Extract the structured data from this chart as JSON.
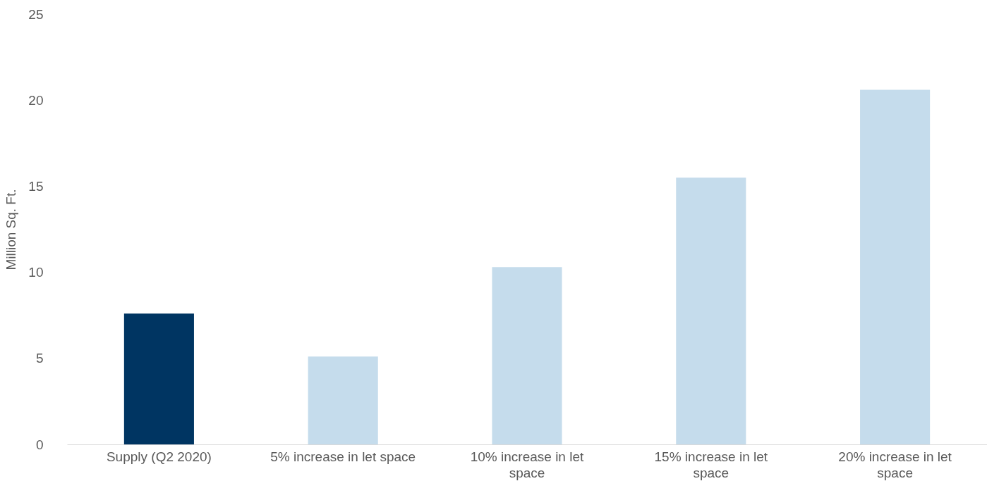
{
  "chart_data": {
    "type": "bar",
    "ylabel": "Million Sq. Ft.",
    "categories": [
      "Supply (Q2 2020)",
      "5% increase in let space",
      "10% increase in let space",
      "15% increase in let space",
      "20% increase in let space"
    ],
    "values": [
      7.6,
      5.1,
      10.3,
      15.5,
      20.6
    ],
    "colors": [
      "#003562",
      "#c5dcec",
      "#c5dcec",
      "#c5dcec",
      "#c5dcec"
    ],
    "ylim": [
      0,
      25
    ],
    "yticks": [
      0,
      5,
      10,
      15,
      20,
      25
    ],
    "grid": false
  }
}
